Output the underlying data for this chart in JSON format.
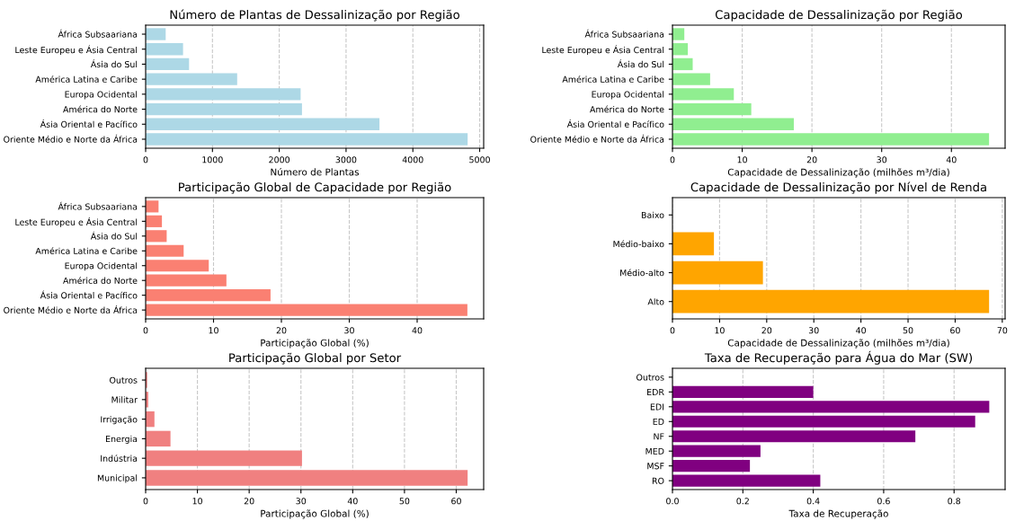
{
  "chart_data": [
    {
      "type": "bar",
      "orientation": "horizontal",
      "title": "Número de Plantas de Dessalinização por Região",
      "xlabel": "Número de Plantas",
      "categories": [
        "África Subsaariana",
        "Leste Europeu e Ásia Central",
        "Ásia do Sul",
        "América Latina e Caribe",
        "Europa Ocidental",
        "América do Norte",
        "Ásia Oriental e Pacífico",
        "Oriente Médio e Norte da África"
      ],
      "values": [
        300,
        560,
        650,
        1370,
        2320,
        2340,
        3500,
        4820
      ],
      "color": "#add8e6",
      "xlim": [
        0,
        5060
      ],
      "xticks": [
        0,
        1000,
        2000,
        3000,
        4000,
        5000
      ],
      "grid": "x"
    },
    {
      "type": "bar",
      "orientation": "horizontal",
      "title": "Capacidade de Dessalinização por Região",
      "xlabel": "Capacidade de Dessalinização (milhões m³/dia)",
      "categories": [
        "África Subsaariana",
        "Leste Europeu e Ásia Central",
        "Ásia do Sul",
        "América Latina e Caribe",
        "Europa Ocidental",
        "América do Norte",
        "Ásia Oriental e Pacífico",
        "Oriente Médio e Norte da África"
      ],
      "values": [
        1.7,
        2.2,
        2.9,
        5.4,
        8.8,
        11.3,
        17.4,
        45.4
      ],
      "color": "#90ee90",
      "xlim": [
        0,
        47.7
      ],
      "xticks": [
        0,
        10,
        20,
        30,
        40
      ],
      "grid": "x"
    },
    {
      "type": "bar",
      "orientation": "horizontal",
      "title": "Participação Global de Capacidade por Região",
      "xlabel": "Participação Global (%)",
      "categories": [
        "África Subsaariana",
        "Leste Europeu e Ásia Central",
        "Ásia do Sul",
        "América Latina e Caribe",
        "Europa Ocidental",
        "América do Norte",
        "Ásia Oriental e Pacífico",
        "Oriente Médio e Norte da África"
      ],
      "values": [
        1.9,
        2.4,
        3.1,
        5.6,
        9.3,
        11.9,
        18.4,
        47.4
      ],
      "color": "#fa8072",
      "xlim": [
        0,
        49.8
      ],
      "xticks": [
        0,
        10,
        20,
        30,
        40
      ],
      "grid": "x"
    },
    {
      "type": "bar",
      "orientation": "horizontal",
      "title": "Capacidade de Dessalinização por Nível de Renda",
      "xlabel": "Capacidade de Dessalinização (milhões m³/dia)",
      "categories": [
        "Baixo",
        "Médio-baixo",
        "Médio-alto",
        "Alto"
      ],
      "values": [
        0,
        8.8,
        19.2,
        67.2
      ],
      "color": "#ffa500",
      "xlim": [
        0,
        70.6
      ],
      "xticks": [
        0,
        10,
        20,
        30,
        40,
        50,
        60,
        70
      ],
      "grid": "x"
    },
    {
      "type": "bar",
      "orientation": "horizontal",
      "title": "Participação Global por Setor",
      "xlabel": "Participação Global (%)",
      "categories": [
        "Outros",
        "Militar",
        "Irrigação",
        "Energia",
        "Indústria",
        "Municipal"
      ],
      "values": [
        0.3,
        0.5,
        1.7,
        4.8,
        30.2,
        62.2
      ],
      "color": "#f08080",
      "xlim": [
        0,
        65.3
      ],
      "xticks": [
        0,
        10,
        20,
        30,
        40,
        50,
        60
      ],
      "grid": "x"
    },
    {
      "type": "bar",
      "orientation": "horizontal",
      "title": "Taxa de Recuperação para Água do Mar (SW)",
      "xlabel": "Taxa de Recuperação",
      "categories": [
        "Outros",
        "EDR",
        "EDI",
        "ED",
        "NF",
        "MED",
        "MSF",
        "RO"
      ],
      "values": [
        0,
        0.4,
        0.9,
        0.86,
        0.69,
        0.25,
        0.22,
        0.42
      ],
      "color": "#800080",
      "xlim": [
        0,
        0.945
      ],
      "xticks": [
        {
          "value": 0,
          "label": "0.0"
        },
        0.2,
        0.4,
        0.6,
        0.8
      ],
      "grid": "x"
    }
  ]
}
